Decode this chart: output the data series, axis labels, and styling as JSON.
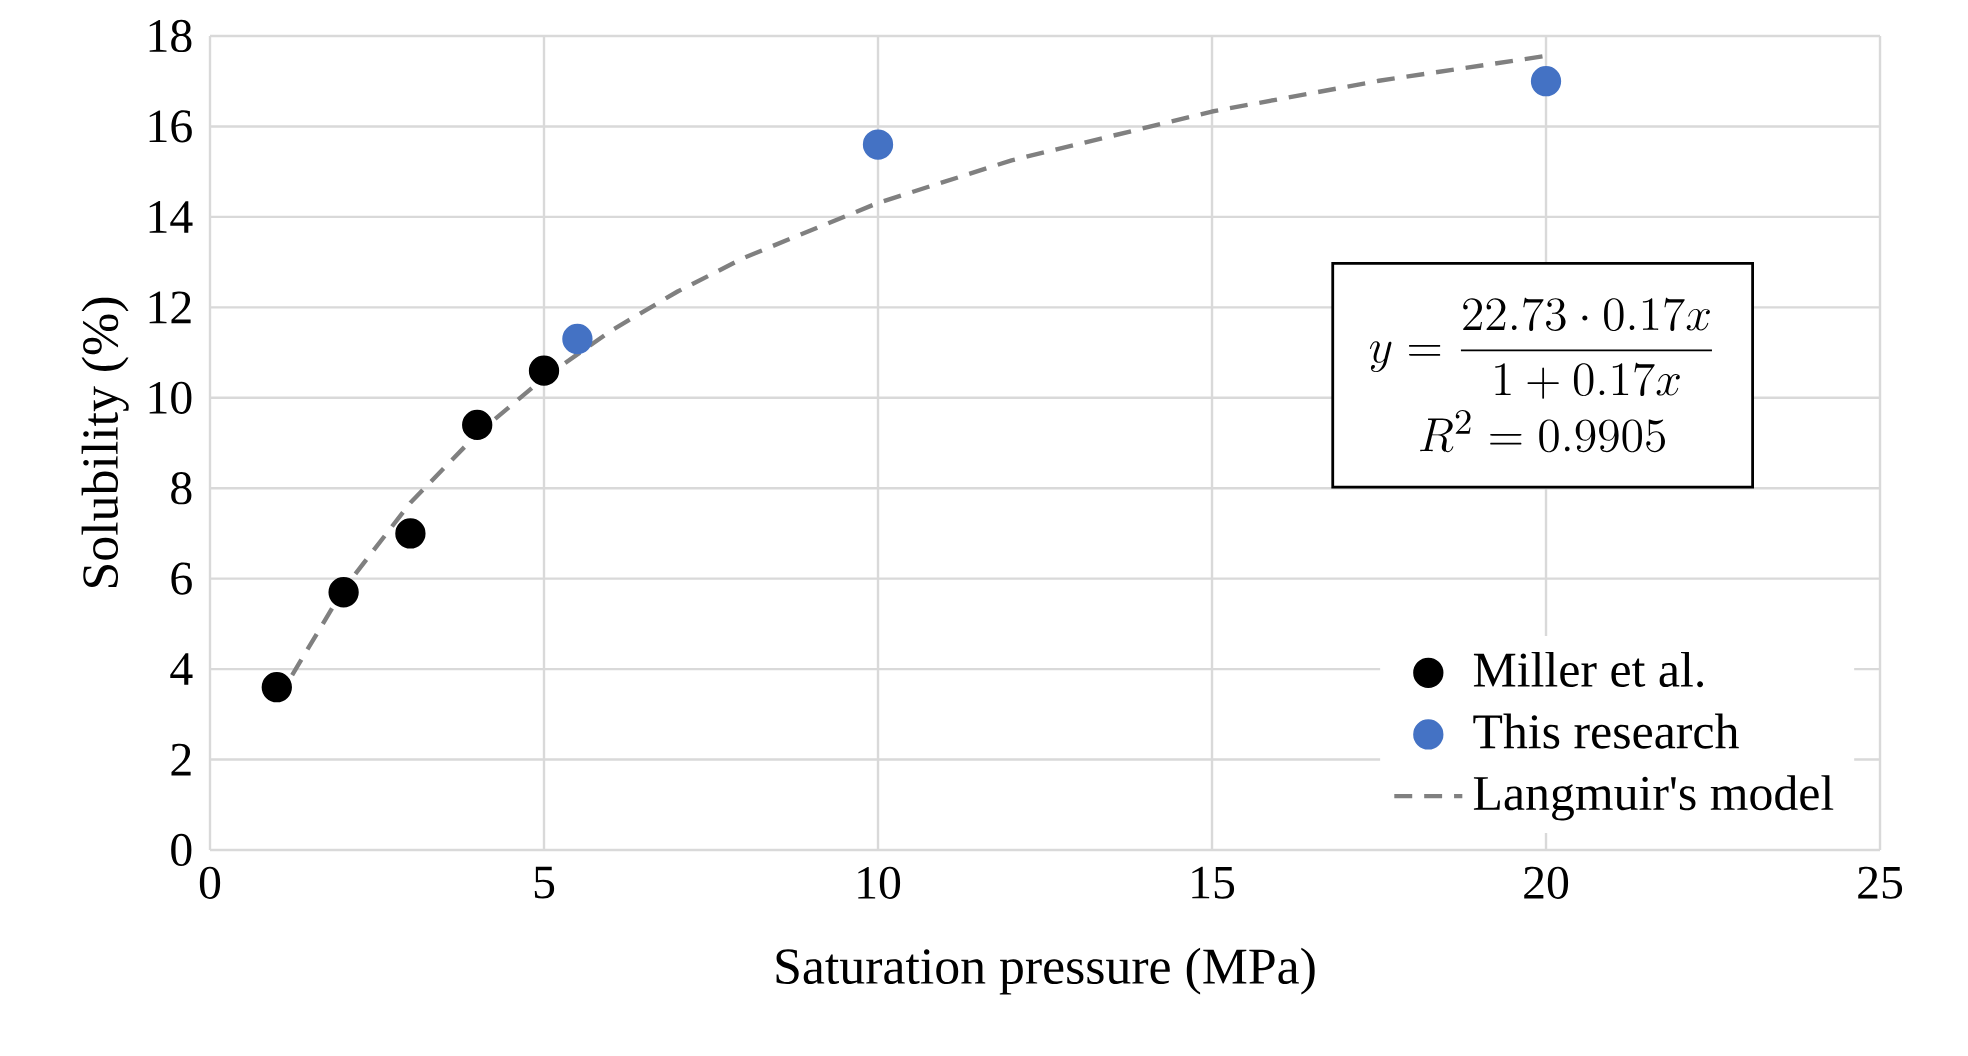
{
  "chart_data": {
    "type": "scatter",
    "xlabel": "Saturation pressure (MPa)",
    "ylabel": "Solubility (%)",
    "xlim": [
      0,
      25
    ],
    "ylim": [
      0,
      18
    ],
    "xticks": [
      0,
      5,
      10,
      15,
      20,
      25
    ],
    "yticks": [
      0,
      2,
      4,
      6,
      8,
      10,
      12,
      14,
      16,
      18
    ],
    "grid": true,
    "legend": "bottom right",
    "series": [
      {
        "name": "Miller et al.",
        "color": "#000000",
        "marker": "circle",
        "x": [
          1,
          2,
          3,
          4,
          5
        ],
        "values": [
          3.6,
          5.7,
          7.0,
          9.4,
          10.6
        ]
      },
      {
        "name": "This research",
        "color": "#4472c4",
        "marker": "circle",
        "x": [
          5.5,
          10,
          20
        ],
        "values": [
          11.3,
          15.6,
          17.0
        ]
      },
      {
        "name": "Langmuir's model",
        "type": "line",
        "color": "#808080",
        "marker": "none",
        "line_style": "dashed",
        "x": [
          1,
          2,
          3,
          4,
          5,
          6,
          7,
          8,
          10,
          12,
          15,
          17.5,
          20
        ],
        "values": [
          3.3,
          5.77,
          7.68,
          9.2,
          10.44,
          11.48,
          12.35,
          13.1,
          14.31,
          15.25,
          16.33,
          17.01,
          17.56
        ]
      }
    ],
    "annotations": [
      "y=\\dfrac{22.73\\cdot 0.17x}{1+0.17x}",
      "R^2=0.9905"
    ]
  }
}
